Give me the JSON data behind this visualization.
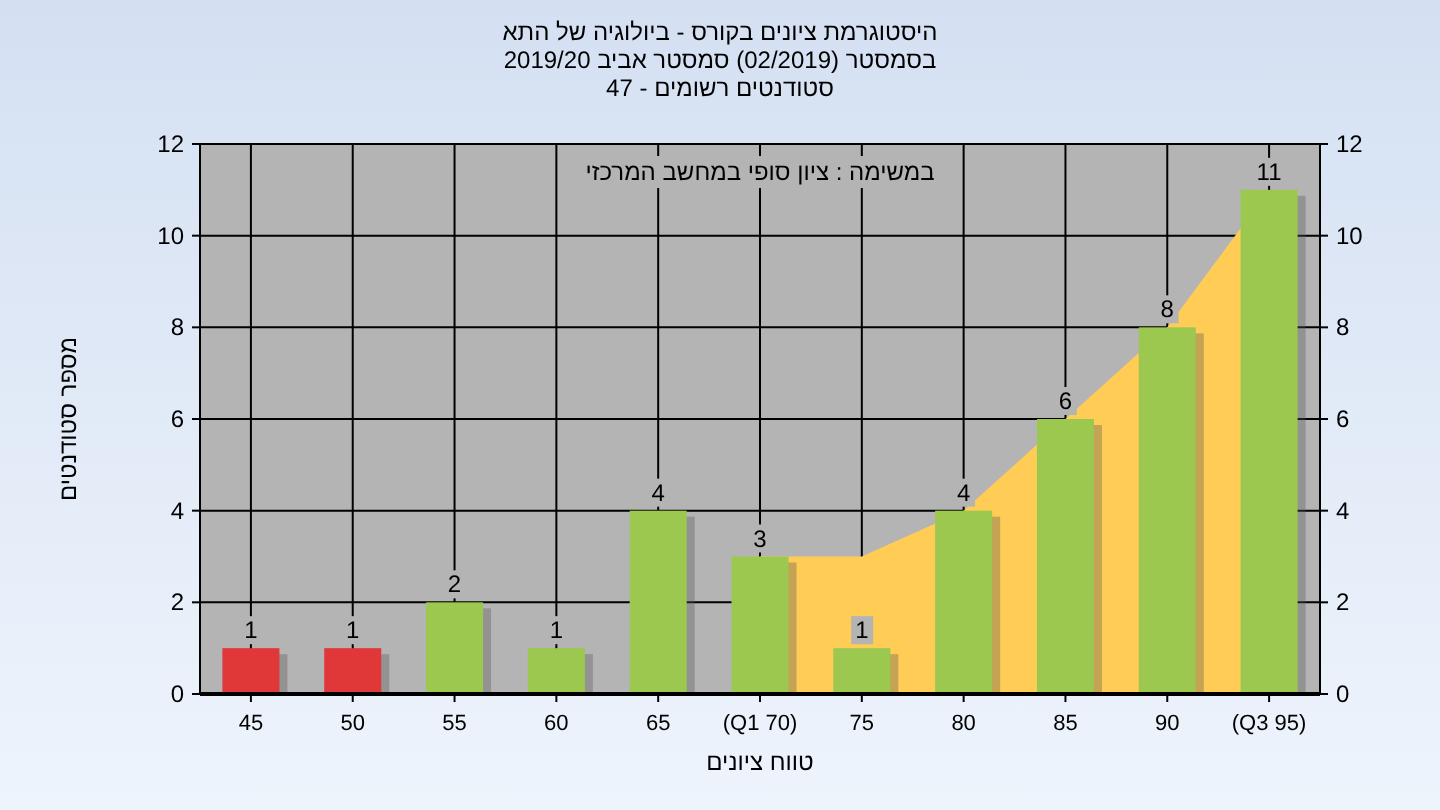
{
  "chart_data": {
    "type": "bar",
    "title": "היסטוגרמת ציונים בקורס - ביולוגיה של התא",
    "subtitle": "בסמסטר (02/2019) סמסטר אביב 2019/20\nסטודנטים רשומים - 47",
    "xlabel": "טווח ציונים",
    "ylabel": "מספר סטודנטים",
    "annotations": [
      "במשימה : ציון סופי במחשב המרכזי"
    ],
    "categories": [
      "45",
      "50",
      "55",
      "60",
      "65",
      "(Q1 70)",
      "75",
      "80",
      "85",
      "90",
      "(Q3 95)"
    ],
    "series": [
      {
        "type": "area",
        "color": "#ffcc55",
        "values": [
          null,
          null,
          null,
          null,
          null,
          3,
          3,
          4,
          6,
          8,
          11
        ]
      },
      {
        "value_labels": [
          "1",
          "1",
          "2",
          "1",
          "4",
          "3",
          "1",
          "4",
          "6",
          "8",
          "11"
        ],
        "colors": [
          "#e03838",
          "#e03838",
          "#9cc850",
          "#9cc850",
          "#9cc850",
          "#9cc850",
          "#9cc850",
          "#9cc850",
          "#9cc850",
          "#9cc850",
          "#9cc850"
        ],
        "values": [
          1,
          1,
          2,
          1,
          4,
          3,
          1,
          4,
          6,
          8,
          11
        ]
      }
    ],
    "ylim": [
      0,
      12
    ],
    "yticks": [
      0,
      2,
      4,
      6,
      8,
      10,
      12
    ],
    "y2lim": [
      0,
      12
    ],
    "y2ticks": [
      0,
      2,
      4,
      6,
      8,
      10,
      12
    ],
    "grid": true
  }
}
